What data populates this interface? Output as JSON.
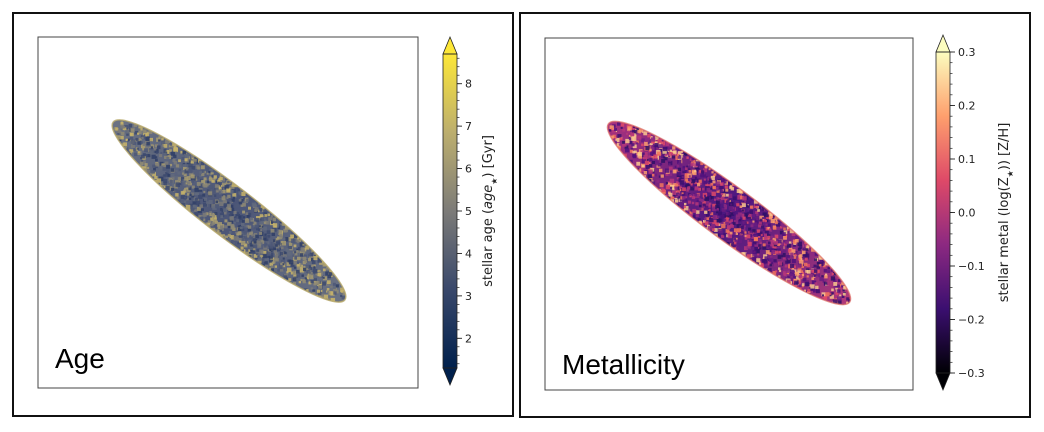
{
  "chart_data": [
    {
      "type": "heatmap",
      "panel_label": "Age",
      "colorbar": {
        "label": "stellar age ($age_\\star$) [Gyr]",
        "label_parts": [
          "stellar age (",
          "age",
          "★",
          ") [Gyr]"
        ],
        "colormap": "cividis",
        "colors": [
          "#00204c",
          "#39486b",
          "#7c7b78",
          "#bcae6e",
          "#fde737"
        ],
        "min": 1.3,
        "max": 8.7,
        "ticks": [
          2,
          3,
          4,
          5,
          6,
          7,
          8
        ],
        "tick_labels": [
          "2",
          "3",
          "4",
          "5",
          "6",
          "7",
          "8"
        ],
        "extend": "both"
      },
      "map": {
        "typical_value": 4.2,
        "edge_value": 6.2,
        "description_color": "#5f667a"
      }
    },
    {
      "type": "heatmap",
      "panel_label": "Metallicity",
      "colorbar": {
        "label": "stellar metal (log(Z★)) [Z/H]",
        "label_parts": [
          "stellar metal (log(Z",
          "★",
          ")) [Z/H]"
        ],
        "colormap": "magma",
        "colors": [
          "#000004",
          "#3b0f70",
          "#8c2981",
          "#de4968",
          "#fe9f6d",
          "#fcfdbf"
        ],
        "min": -0.3,
        "max": 0.3,
        "ticks": [
          -0.3,
          -0.2,
          -0.1,
          0.0,
          0.1,
          0.2,
          0.3
        ],
        "tick_labels": [
          "−0.3",
          "−0.2",
          "−0.1",
          "0.0",
          "0.1",
          "0.2",
          "0.3"
        ],
        "extend": "both"
      },
      "map": {
        "typical_value": -0.12,
        "edge_value": 0.1,
        "description_color": "#6b1d7c"
      }
    }
  ]
}
